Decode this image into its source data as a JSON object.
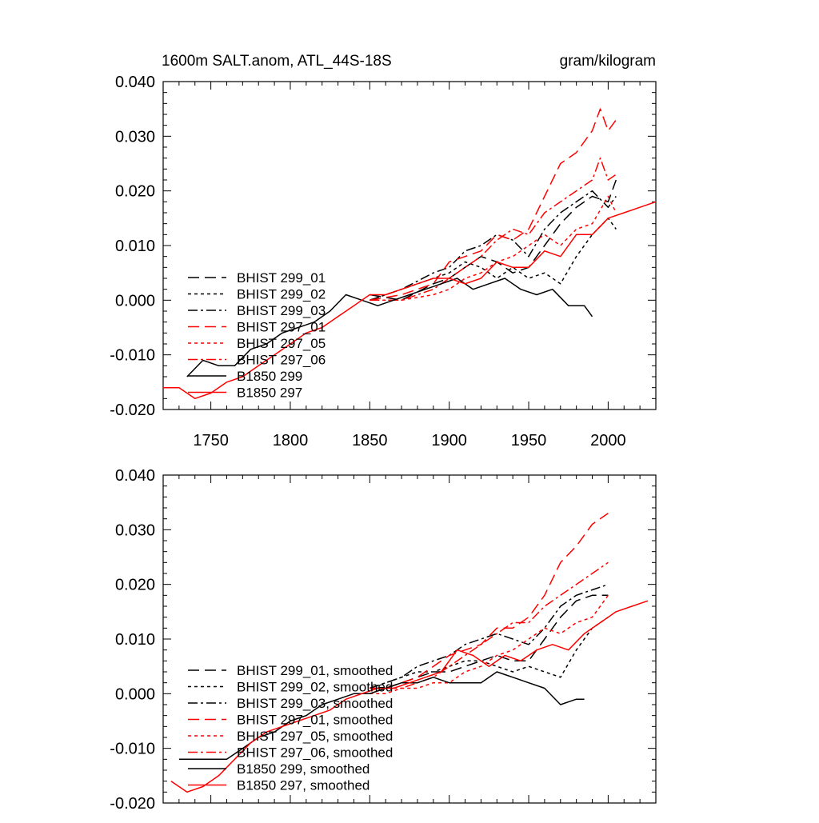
{
  "header": {
    "title": "1600m SALT.anom, ATL_44S-18S",
    "units": "gram/kilogram"
  },
  "style": {
    "background": "#ffffff",
    "axis_color": "#000000",
    "series_colors": {
      "black": "#000000",
      "red": "#ff0000"
    }
  },
  "chart_data": [
    {
      "type": "line",
      "title": "1600m SALT.anom, ATL_44S-18S",
      "units": "gram/kilogram",
      "xlim": [
        1720,
        2030
      ],
      "ylim": [
        -0.02,
        0.04
      ],
      "xticks": [
        1750,
        1800,
        1850,
        1900,
        1950,
        2000
      ],
      "xtick_labels": [
        "1750",
        "1800",
        "1850",
        "1900",
        "1950",
        "2000"
      ],
      "yticks": [
        -0.02,
        -0.01,
        0.0,
        0.01,
        0.02,
        0.03,
        0.04
      ],
      "ytick_labels": [
        "-0.020",
        "-0.010",
        "0.000",
        "0.010",
        "0.020",
        "0.030",
        "0.040"
      ],
      "grid": false,
      "legend_position": "bottom-left",
      "series": [
        {
          "name": "BHIST 299_01",
          "color": "black",
          "dash": "long",
          "x": [
            1850,
            1870,
            1890,
            1900,
            1910,
            1920,
            1930,
            1940,
            1950,
            1960,
            1970,
            1980,
            1990,
            2000,
            2005
          ],
          "y": [
            0.001,
            0.0,
            0.003,
            0.004,
            0.006,
            0.008,
            0.007,
            0.005,
            0.006,
            0.01,
            0.014,
            0.017,
            0.019,
            0.018,
            0.022
          ]
        },
        {
          "name": "BHIST 299_02",
          "color": "black",
          "dash": "short",
          "x": [
            1850,
            1870,
            1890,
            1900,
            1910,
            1920,
            1930,
            1940,
            1950,
            1960,
            1970,
            1980,
            1990,
            2000,
            2005
          ],
          "y": [
            0.0,
            0.002,
            0.004,
            0.005,
            0.007,
            0.006,
            0.004,
            0.006,
            0.004,
            0.005,
            0.003,
            0.008,
            0.012,
            0.015,
            0.013
          ]
        },
        {
          "name": "BHIST 299_03",
          "color": "black",
          "dash": "dashdot",
          "x": [
            1850,
            1870,
            1890,
            1900,
            1910,
            1920,
            1930,
            1940,
            1950,
            1960,
            1970,
            1980,
            1990,
            2000,
            2005
          ],
          "y": [
            0.0,
            0.002,
            0.005,
            0.006,
            0.009,
            0.01,
            0.012,
            0.011,
            0.008,
            0.013,
            0.016,
            0.018,
            0.02,
            0.017,
            0.019
          ]
        },
        {
          "name": "BHIST 297_01",
          "color": "red",
          "dash": "long",
          "x": [
            1850,
            1870,
            1890,
            1900,
            1910,
            1920,
            1930,
            1940,
            1950,
            1960,
            1970,
            1980,
            1990,
            1995,
            2000,
            2005
          ],
          "y": [
            0.0,
            0.001,
            0.003,
            0.007,
            0.008,
            0.009,
            0.012,
            0.011,
            0.013,
            0.019,
            0.025,
            0.027,
            0.031,
            0.035,
            0.031,
            0.033
          ]
        },
        {
          "name": "BHIST 297_05",
          "color": "red",
          "dash": "short",
          "x": [
            1850,
            1870,
            1890,
            1900,
            1910,
            1920,
            1930,
            1940,
            1950,
            1960,
            1970,
            1980,
            1990,
            2000,
            2005
          ],
          "y": [
            0.0,
            0.0,
            0.001,
            0.002,
            0.004,
            0.005,
            0.007,
            0.008,
            0.01,
            0.012,
            0.01,
            0.013,
            0.014,
            0.019,
            0.016
          ]
        },
        {
          "name": "BHIST 297_06",
          "color": "red",
          "dash": "dashdot",
          "x": [
            1850,
            1870,
            1890,
            1900,
            1910,
            1920,
            1930,
            1940,
            1950,
            1960,
            1970,
            1980,
            1990,
            1995,
            2000,
            2005
          ],
          "y": [
            0.0,
            0.0,
            0.002,
            0.004,
            0.006,
            0.008,
            0.011,
            0.013,
            0.012,
            0.016,
            0.018,
            0.02,
            0.022,
            0.026,
            0.022,
            0.023
          ]
        },
        {
          "name": "B1850 299",
          "color": "black",
          "dash": "solid",
          "x": [
            1735,
            1745,
            1755,
            1765,
            1775,
            1785,
            1795,
            1805,
            1815,
            1825,
            1835,
            1845,
            1855,
            1865,
            1875,
            1885,
            1895,
            1905,
            1915,
            1925,
            1935,
            1945,
            1955,
            1965,
            1975,
            1985,
            1990
          ],
          "y": [
            -0.014,
            -0.011,
            -0.012,
            -0.012,
            -0.009,
            -0.008,
            -0.006,
            -0.005,
            -0.004,
            -0.002,
            0.001,
            0.0,
            -0.001,
            0.0,
            0.001,
            0.002,
            0.003,
            0.004,
            0.002,
            0.003,
            0.004,
            0.002,
            0.001,
            0.002,
            -0.001,
            -0.001,
            -0.003
          ]
        },
        {
          "name": "B1850 297",
          "color": "red",
          "dash": "solid",
          "x": [
            1720,
            1730,
            1740,
            1750,
            1760,
            1770,
            1780,
            1790,
            1800,
            1810,
            1820,
            1830,
            1840,
            1850,
            1860,
            1870,
            1880,
            1890,
            1900,
            1910,
            1920,
            1930,
            1940,
            1950,
            1960,
            1970,
            1980,
            1990,
            2000,
            2010,
            2020,
            2030
          ],
          "y": [
            -0.016,
            -0.016,
            -0.018,
            -0.017,
            -0.015,
            -0.014,
            -0.012,
            -0.01,
            -0.008,
            -0.006,
            -0.005,
            -0.003,
            -0.001,
            0.001,
            0.001,
            0.002,
            0.003,
            0.004,
            0.004,
            0.003,
            0.004,
            0.007,
            0.006,
            0.006,
            0.009,
            0.008,
            0.012,
            0.012,
            0.015,
            0.016,
            0.017,
            0.018
          ]
        }
      ]
    },
    {
      "type": "line",
      "xlim": [
        1720,
        2030
      ],
      "ylim": [
        -0.02,
        0.04
      ],
      "yticks": [
        -0.02,
        -0.01,
        0.0,
        0.01,
        0.02,
        0.03,
        0.04
      ],
      "ytick_labels": [
        "-0.020",
        "-0.010",
        "0.000",
        "0.010",
        "0.020",
        "0.030",
        "0.040"
      ],
      "grid": false,
      "legend_position": "bottom-left",
      "series": [
        {
          "name": "BHIST 299_01, smoothed",
          "color": "black",
          "dash": "long",
          "x": [
            1850,
            1860,
            1870,
            1880,
            1890,
            1900,
            1910,
            1920,
            1930,
            1940,
            1950,
            1960,
            1970,
            1980,
            1990,
            2000
          ],
          "y": [
            0.001,
            0.001,
            0.002,
            0.003,
            0.004,
            0.004,
            0.005,
            0.006,
            0.007,
            0.006,
            0.006,
            0.01,
            0.014,
            0.017,
            0.018,
            0.018
          ]
        },
        {
          "name": "BHIST 299_02, smoothed",
          "color": "black",
          "dash": "short",
          "x": [
            1850,
            1860,
            1870,
            1880,
            1890,
            1900,
            1910,
            1920,
            1930,
            1940,
            1950,
            1960,
            1970,
            1980,
            1990,
            2000
          ],
          "y": [
            0.001,
            0.002,
            0.003,
            0.004,
            0.004,
            0.005,
            0.006,
            0.006,
            0.005,
            0.004,
            0.005,
            0.004,
            0.003,
            0.008,
            0.012,
            0.014
          ]
        },
        {
          "name": "BHIST 299_03, smoothed",
          "color": "black",
          "dash": "dashdot",
          "x": [
            1850,
            1860,
            1870,
            1880,
            1890,
            1900,
            1910,
            1920,
            1930,
            1940,
            1950,
            1960,
            1970,
            1980,
            1990,
            2000
          ],
          "y": [
            0.001,
            0.002,
            0.003,
            0.005,
            0.006,
            0.007,
            0.009,
            0.01,
            0.011,
            0.01,
            0.009,
            0.012,
            0.016,
            0.018,
            0.019,
            0.02
          ]
        },
        {
          "name": "BHIST 297_01, smoothed",
          "color": "red",
          "dash": "long",
          "x": [
            1850,
            1860,
            1870,
            1880,
            1890,
            1900,
            1910,
            1920,
            1930,
            1940,
            1950,
            1960,
            1970,
            1980,
            1990,
            2000
          ],
          "y": [
            0.001,
            0.001,
            0.002,
            0.003,
            0.005,
            0.007,
            0.008,
            0.009,
            0.012,
            0.012,
            0.014,
            0.018,
            0.024,
            0.027,
            0.031,
            0.033
          ]
        },
        {
          "name": "BHIST 297_05, smoothed",
          "color": "red",
          "dash": "short",
          "x": [
            1850,
            1860,
            1870,
            1880,
            1890,
            1900,
            1910,
            1920,
            1930,
            1940,
            1950,
            1960,
            1970,
            1980,
            1990,
            2000
          ],
          "y": [
            0.0,
            0.0,
            0.001,
            0.001,
            0.002,
            0.002,
            0.004,
            0.005,
            0.007,
            0.008,
            0.01,
            0.012,
            0.011,
            0.013,
            0.014,
            0.018
          ]
        },
        {
          "name": "BHIST 297_06, smoothed",
          "color": "red",
          "dash": "dashdot",
          "x": [
            1850,
            1860,
            1870,
            1880,
            1890,
            1900,
            1910,
            1920,
            1930,
            1940,
            1950,
            1960,
            1970,
            1980,
            1990,
            2000
          ],
          "y": [
            0.0,
            0.001,
            0.001,
            0.002,
            0.003,
            0.005,
            0.007,
            0.009,
            0.011,
            0.013,
            0.013,
            0.016,
            0.018,
            0.02,
            0.022,
            0.024
          ]
        },
        {
          "name": "B1850 299, smoothed",
          "color": "black",
          "dash": "solid",
          "x": [
            1730,
            1740,
            1750,
            1760,
            1770,
            1780,
            1790,
            1800,
            1810,
            1820,
            1830,
            1840,
            1850,
            1860,
            1870,
            1880,
            1890,
            1900,
            1910,
            1920,
            1930,
            1940,
            1950,
            1960,
            1970,
            1980,
            1985
          ],
          "y": [
            -0.012,
            -0.012,
            -0.012,
            -0.012,
            -0.01,
            -0.008,
            -0.007,
            -0.005,
            -0.004,
            -0.002,
            -0.001,
            0.0,
            0.0,
            0.001,
            0.002,
            0.002,
            0.003,
            0.002,
            0.002,
            0.002,
            0.004,
            0.003,
            0.002,
            0.001,
            -0.002,
            -0.001,
            -0.001
          ]
        },
        {
          "name": "B1850 297, smoothed",
          "color": "red",
          "dash": "solid",
          "x": [
            1725,
            1735,
            1745,
            1755,
            1765,
            1775,
            1785,
            1795,
            1805,
            1815,
            1825,
            1835,
            1845,
            1855,
            1865,
            1875,
            1885,
            1895,
            1905,
            1915,
            1925,
            1935,
            1945,
            1955,
            1965,
            1975,
            1985,
            1995,
            2005,
            2015,
            2025
          ],
          "y": [
            -0.016,
            -0.018,
            -0.017,
            -0.015,
            -0.012,
            -0.009,
            -0.007,
            -0.006,
            -0.005,
            -0.004,
            -0.003,
            -0.001,
            0.0,
            0.001,
            0.001,
            0.002,
            0.003,
            0.004,
            0.008,
            0.007,
            0.005,
            0.007,
            0.006,
            0.008,
            0.009,
            0.008,
            0.011,
            0.013,
            0.015,
            0.016,
            0.017
          ]
        }
      ]
    }
  ]
}
